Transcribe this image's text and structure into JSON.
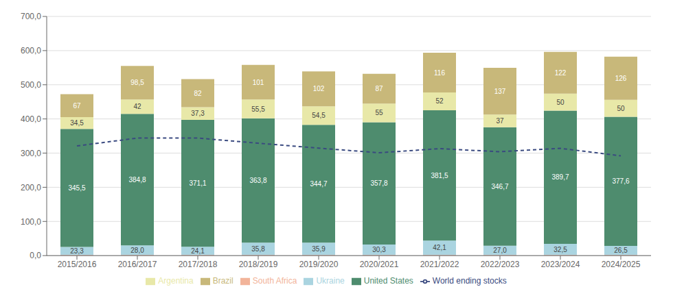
{
  "chart_data": {
    "type": "bar",
    "stacked": true,
    "grid": true,
    "legend": "bottom",
    "categories": [
      "2015/2016",
      "2016/2017",
      "2017/2018",
      "2018/2019",
      "2019/2020",
      "2020/2021",
      "2021/2022",
      "2022/2023",
      "2023/2024",
      "2024/2025"
    ],
    "ylim": [
      0,
      700
    ],
    "yticks": [
      {
        "value": 0,
        "label": "0,0"
      },
      {
        "value": 100,
        "label": "100,0"
      },
      {
        "value": 200,
        "label": "200,0"
      },
      {
        "value": 300,
        "label": "300,0"
      },
      {
        "value": 400,
        "label": "400,0"
      },
      {
        "value": 500,
        "label": "500,0"
      },
      {
        "value": 600,
        "label": "600,0"
      },
      {
        "value": 700,
        "label": "700,0"
      }
    ],
    "series": [
      {
        "name": "South Africa",
        "type": "bar",
        "color": "#f2b49a",
        "data_labels": false,
        "values": [
          2.0,
          2.0,
          2.0,
          2.0,
          2.0,
          2.0,
          2.0,
          2.0,
          2.0,
          2.0
        ]
      },
      {
        "name": "Ukraine",
        "type": "bar",
        "color": "#aad4e0",
        "data_labels": true,
        "values": [
          23.3,
          28.0,
          24.1,
          35.8,
          35.9,
          30.3,
          42.1,
          27.0,
          32.5,
          26.5
        ],
        "value_labels": [
          "23,3",
          "28,0",
          "24,1",
          "35,8",
          "35,9",
          "30,3",
          "42,1",
          "27,0",
          "32,5",
          "26,5"
        ]
      },
      {
        "name": "United States",
        "type": "bar",
        "color": "#4e8c6e",
        "data_labels": true,
        "values": [
          345.5,
          384.8,
          371.1,
          363.8,
          344.7,
          357.8,
          381.5,
          346.7,
          389.7,
          377.6
        ],
        "value_labels": [
          "345,5",
          "384,8",
          "371,1",
          "363,8",
          "344,7",
          "357,8",
          "381,5",
          "346,7",
          "389,7",
          "377,6"
        ]
      },
      {
        "name": "Argentina",
        "type": "bar",
        "color": "#e8e8a8",
        "data_labels": true,
        "values": [
          34.5,
          42.0,
          37.3,
          55.5,
          54.5,
          55.0,
          52.0,
          37.0,
          50.0,
          50.0
        ],
        "value_labels": [
          "34,5",
          "42",
          "37,3",
          "55,5",
          "54,5",
          "55",
          "52",
          "37",
          "50",
          "50"
        ]
      },
      {
        "name": "Brazil",
        "type": "bar",
        "color": "#c8b87a",
        "data_labels": true,
        "values": [
          67.0,
          98.5,
          82.0,
          101.0,
          102.0,
          87.0,
          116.0,
          137.0,
          122.0,
          126.0
        ],
        "value_labels": [
          "67",
          "98,5",
          "82",
          "101",
          "102",
          "87",
          "116",
          "137",
          "122",
          "126"
        ]
      },
      {
        "name": "World ending stocks",
        "type": "line",
        "color": "#3a4a80",
        "line_style": "dashed",
        "data_labels": false,
        "values": [
          321.0,
          344.0,
          344.0,
          329.0,
          314.5,
          301.0,
          313.0,
          304.0,
          314.0,
          292.0
        ]
      }
    ]
  }
}
